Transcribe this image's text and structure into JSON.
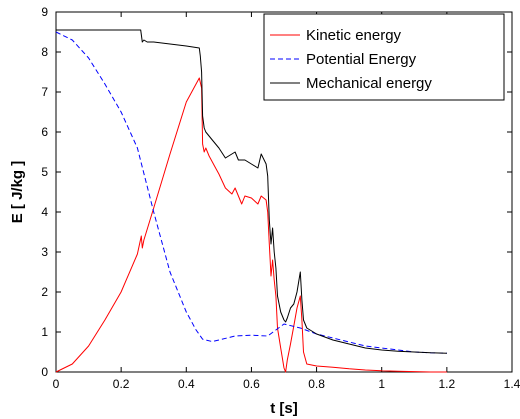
{
  "chart_data": {
    "type": "line",
    "xlabel": "t  [s]",
    "ylabel": "E  [ J/kg ]",
    "xlim": [
      0,
      1.4
    ],
    "ylim": [
      0,
      9
    ],
    "xticks": [
      "0",
      "0.2",
      "0.4",
      "0.6",
      "0.8",
      "1",
      "1.2",
      "1.4"
    ],
    "yticks": [
      "0",
      "1",
      "2",
      "3",
      "4",
      "5",
      "6",
      "7",
      "8",
      "9"
    ],
    "grid": false,
    "legend_position": "top-right",
    "series": [
      {
        "name": "Kinetic energy",
        "color": "#ff0000",
        "style": "solid",
        "x": [
          0,
          0.05,
          0.1,
          0.15,
          0.2,
          0.25,
          0.262,
          0.265,
          0.27,
          0.3,
          0.35,
          0.4,
          0.44,
          0.447,
          0.45,
          0.455,
          0.46,
          0.47,
          0.49,
          0.5,
          0.52,
          0.54,
          0.55,
          0.57,
          0.58,
          0.6,
          0.62,
          0.63,
          0.645,
          0.65,
          0.655,
          0.66,
          0.665,
          0.67,
          0.675,
          0.68,
          0.69,
          0.7,
          0.705,
          0.71,
          0.72,
          0.73,
          0.74,
          0.75,
          0.755,
          0.76,
          0.77,
          0.8,
          0.85,
          0.9,
          0.95,
          1.0,
          1.05,
          1.1,
          1.15,
          1.2
        ],
        "y": [
          0,
          0.2,
          0.65,
          1.3,
          2.0,
          2.95,
          3.4,
          3.1,
          3.3,
          4.1,
          5.45,
          6.75,
          7.35,
          7.1,
          5.7,
          5.5,
          5.6,
          5.4,
          5.1,
          4.95,
          4.6,
          4.45,
          4.6,
          4.2,
          4.4,
          4.35,
          4.2,
          4.4,
          4.3,
          4.0,
          3.2,
          2.4,
          2.8,
          2.3,
          1.9,
          1.1,
          0.6,
          0.1,
          0.0,
          0.3,
          0.7,
          1.15,
          1.6,
          1.9,
          1.3,
          0.5,
          0.2,
          0.15,
          0.12,
          0.08,
          0.05,
          0.03,
          0.02,
          0.01,
          0.0,
          0.0
        ]
      },
      {
        "name": "Potential Energy",
        "color": "#0000ff",
        "style": "dashed",
        "x": [
          0,
          0.05,
          0.1,
          0.15,
          0.2,
          0.25,
          0.3,
          0.35,
          0.4,
          0.43,
          0.45,
          0.48,
          0.5,
          0.55,
          0.6,
          0.65,
          0.7,
          0.75,
          0.8,
          0.85,
          0.9,
          0.95,
          1.0,
          1.05,
          1.1,
          1.15,
          1.2
        ],
        "y": [
          8.5,
          8.3,
          7.85,
          7.2,
          6.5,
          5.6,
          4.0,
          2.5,
          1.5,
          1.05,
          0.82,
          0.76,
          0.8,
          0.9,
          0.92,
          0.9,
          1.2,
          1.1,
          0.95,
          0.85,
          0.75,
          0.65,
          0.6,
          0.55,
          0.5,
          0.48,
          0.47
        ]
      },
      {
        "name": "Mechanical energy",
        "color": "#000000",
        "style": "solid",
        "x": [
          0,
          0.15,
          0.15,
          0.26,
          0.265,
          0.27,
          0.28,
          0.3,
          0.35,
          0.4,
          0.44,
          0.443,
          0.447,
          0.45,
          0.455,
          0.46,
          0.48,
          0.5,
          0.52,
          0.55,
          0.56,
          0.58,
          0.6,
          0.62,
          0.63,
          0.645,
          0.65,
          0.655,
          0.66,
          0.665,
          0.67,
          0.675,
          0.68,
          0.69,
          0.7,
          0.705,
          0.71,
          0.72,
          0.73,
          0.74,
          0.75,
          0.755,
          0.76,
          0.77,
          0.8,
          0.85,
          0.9,
          0.95,
          1.0,
          1.05,
          1.1,
          1.15,
          1.2
        ],
        "y": [
          8.55,
          8.55,
          8.55,
          8.55,
          8.25,
          8.3,
          8.25,
          8.25,
          8.2,
          8.15,
          8.1,
          7.9,
          7.5,
          6.4,
          6.1,
          6.0,
          5.8,
          5.6,
          5.35,
          5.5,
          5.3,
          5.3,
          5.2,
          5.1,
          5.45,
          5.2,
          4.9,
          3.8,
          3.2,
          3.6,
          3.0,
          2.6,
          1.9,
          1.5,
          1.3,
          1.25,
          1.35,
          1.6,
          1.7,
          2.0,
          2.5,
          1.8,
          1.3,
          1.1,
          0.95,
          0.8,
          0.7,
          0.6,
          0.55,
          0.52,
          0.5,
          0.48,
          0.47
        ]
      }
    ]
  }
}
